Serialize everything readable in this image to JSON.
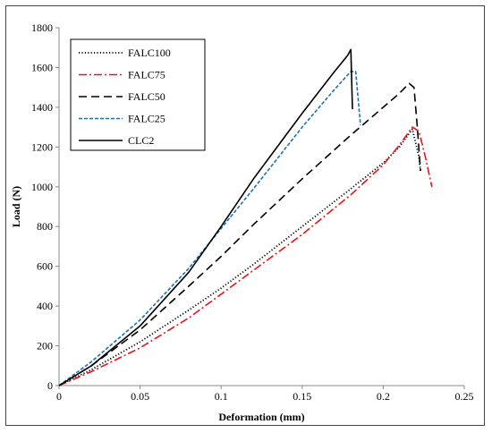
{
  "chart_data": {
    "type": "line",
    "xlabel": "Deformation (mm)",
    "ylabel": "Load (N)",
    "xlim": [
      0,
      0.25
    ],
    "ylim": [
      0,
      1800
    ],
    "xticks": [
      "0",
      "0.05",
      "0.1",
      "0.15",
      "0.2",
      "0.25"
    ],
    "yticks": [
      "0",
      "200",
      "400",
      "600",
      "800",
      "1000",
      "1200",
      "1400",
      "1600",
      "1800"
    ],
    "grid": false,
    "legend_position": "top-left",
    "series": [
      {
        "name": "FALC100",
        "color": "#000000",
        "dash": "dotted",
        "x": [
          0,
          0.02,
          0.05,
          0.08,
          0.1,
          0.12,
          0.15,
          0.18,
          0.2,
          0.21,
          0.218,
          0.222,
          0.223
        ],
        "y": [
          0,
          80,
          220,
          380,
          490,
          610,
          800,
          990,
          1120,
          1200,
          1290,
          1150,
          1080
        ]
      },
      {
        "name": "FALC75",
        "color": "#e8141a",
        "dash": "dashdot",
        "x": [
          0,
          0.02,
          0.05,
          0.08,
          0.1,
          0.12,
          0.15,
          0.18,
          0.2,
          0.21,
          0.218,
          0.222,
          0.226,
          0.23
        ],
        "y": [
          0,
          70,
          190,
          340,
          460,
          580,
          760,
          960,
          1110,
          1210,
          1300,
          1280,
          1150,
          1000
        ]
      },
      {
        "name": "FALC50",
        "color": "#000000",
        "dash": "longdash",
        "x": [
          0,
          0.02,
          0.05,
          0.08,
          0.1,
          0.12,
          0.15,
          0.18,
          0.2,
          0.21,
          0.216,
          0.219,
          0.221,
          0.223
        ],
        "y": [
          0,
          100,
          280,
          500,
          650,
          810,
          1040,
          1260,
          1400,
          1470,
          1520,
          1500,
          1300,
          1080
        ]
      },
      {
        "name": "FALC25",
        "color": "#1f6fb5",
        "dash": "shortdash",
        "x": [
          0,
          0.02,
          0.05,
          0.08,
          0.1,
          0.12,
          0.15,
          0.17,
          0.18,
          0.183,
          0.186
        ],
        "y": [
          0,
          120,
          330,
          590,
          790,
          990,
          1300,
          1490,
          1580,
          1580,
          1310
        ]
      },
      {
        "name": "CLC2",
        "color": "#000000",
        "dash": "solid",
        "x": [
          0,
          0.02,
          0.05,
          0.08,
          0.1,
          0.12,
          0.15,
          0.17,
          0.178,
          0.18,
          0.181
        ],
        "y": [
          0,
          100,
          300,
          570,
          800,
          1040,
          1370,
          1580,
          1660,
          1690,
          1390
        ]
      }
    ]
  }
}
